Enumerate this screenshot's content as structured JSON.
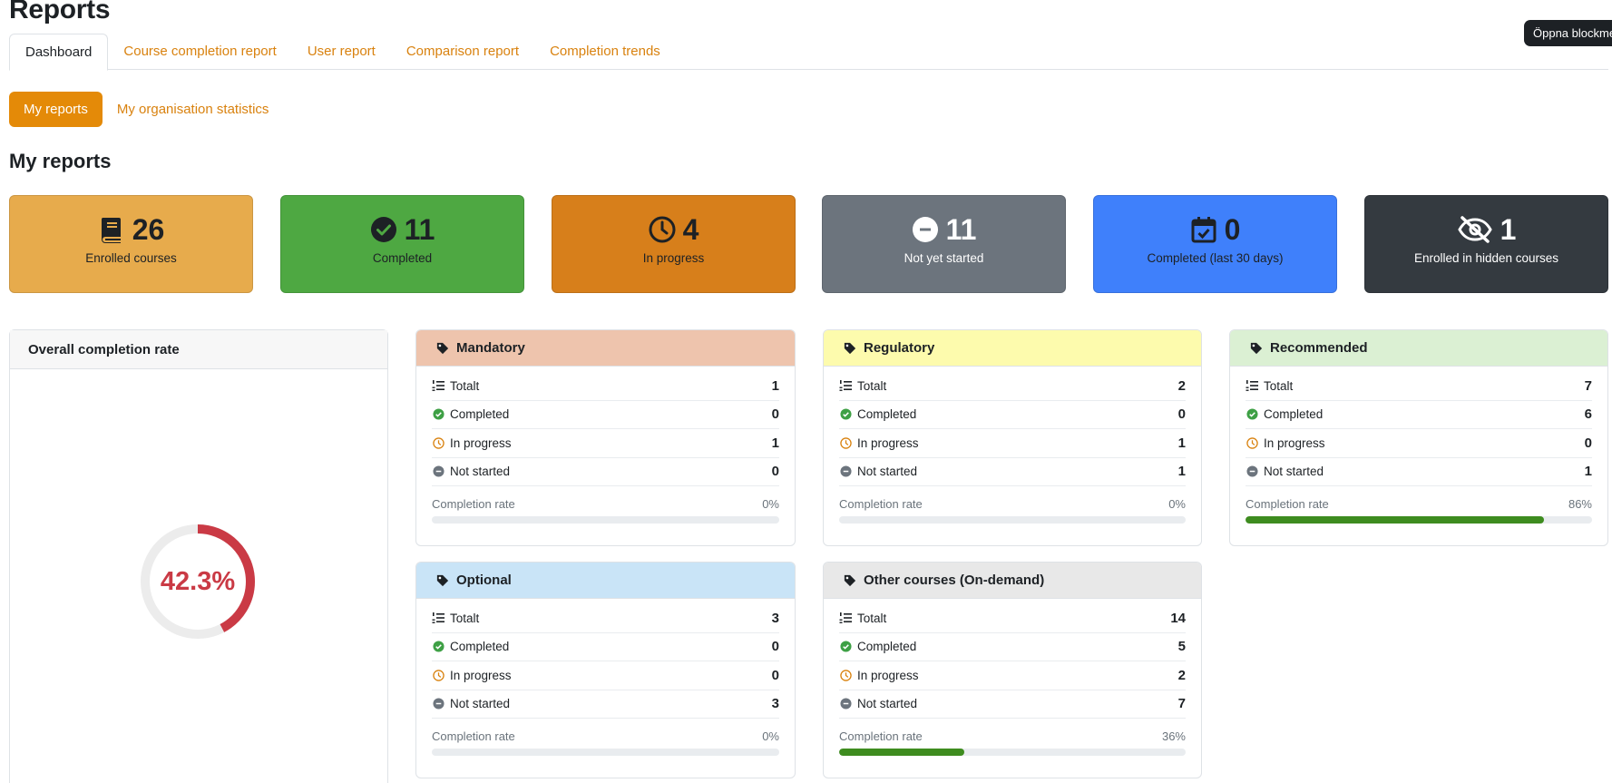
{
  "page": {
    "title": "Reports"
  },
  "block_button": {
    "label": "Öppna blockmeny"
  },
  "tabs": [
    {
      "label": "Dashboard",
      "active": true
    },
    {
      "label": "Course completion report"
    },
    {
      "label": "User report"
    },
    {
      "label": "Comparison report"
    },
    {
      "label": "Completion trends"
    }
  ],
  "pills": [
    {
      "label": "My reports",
      "active": true
    },
    {
      "label": "My organisation statistics"
    }
  ],
  "section_title": "My reports",
  "stats": [
    {
      "value": "26",
      "label": "Enrolled courses",
      "icon": "book-icon",
      "bg": "#e7ab4c",
      "fg": "#1d2125"
    },
    {
      "value": "11",
      "label": "Completed",
      "icon": "check-circle-icon",
      "bg": "#4ea842",
      "fg": "#1d2125"
    },
    {
      "value": "4",
      "label": "In progress",
      "icon": "clock-icon",
      "bg": "#d77f1b",
      "fg": "#1d2125"
    },
    {
      "value": "11",
      "label": "Not yet started",
      "icon": "minus-circle-icon",
      "bg": "#6c747d",
      "fg": "#ffffff"
    },
    {
      "value": "0",
      "label": "Completed (last 30 days)",
      "icon": "calendar-check-icon",
      "bg": "#3f80fb",
      "fg": "#1d2125"
    },
    {
      "value": "1",
      "label": "Enrolled in hidden courses",
      "icon": "eye-slash-icon",
      "bg": "#343a40",
      "fg": "#ffffff"
    }
  ],
  "overall": {
    "title": "Overall completion rate",
    "value_label": "42.3%",
    "percent": 42.3,
    "color": "#ca3a45"
  },
  "row_labels": {
    "total": "Totalt",
    "completed": "Completed",
    "in_progress": "In progress",
    "not_started": "Not started",
    "rate": "Completion rate"
  },
  "categories": [
    {
      "name": "Mandatory",
      "header_bg": "#eec4ad",
      "total": "1",
      "completed": "0",
      "in_progress": "1",
      "not_started": "0",
      "rate_label": "0%",
      "rate": 0
    },
    {
      "name": "Regulatory",
      "header_bg": "#fdfbad",
      "total": "2",
      "completed": "0",
      "in_progress": "1",
      "not_started": "1",
      "rate_label": "0%",
      "rate": 0
    },
    {
      "name": "Recommended",
      "header_bg": "#dbf0d3",
      "total": "7",
      "completed": "6",
      "in_progress": "0",
      "not_started": "1",
      "rate_label": "86%",
      "rate": 86
    },
    {
      "name": "Optional",
      "header_bg": "#c9e4f7",
      "total": "3",
      "completed": "0",
      "in_progress": "0",
      "not_started": "3",
      "rate_label": "0%",
      "rate": 0
    },
    {
      "name": "Other courses (On-demand)",
      "header_bg": "#e8e8e8",
      "total": "14",
      "completed": "5",
      "in_progress": "2",
      "not_started": "7",
      "rate_label": "36%",
      "rate": 36
    }
  ]
}
